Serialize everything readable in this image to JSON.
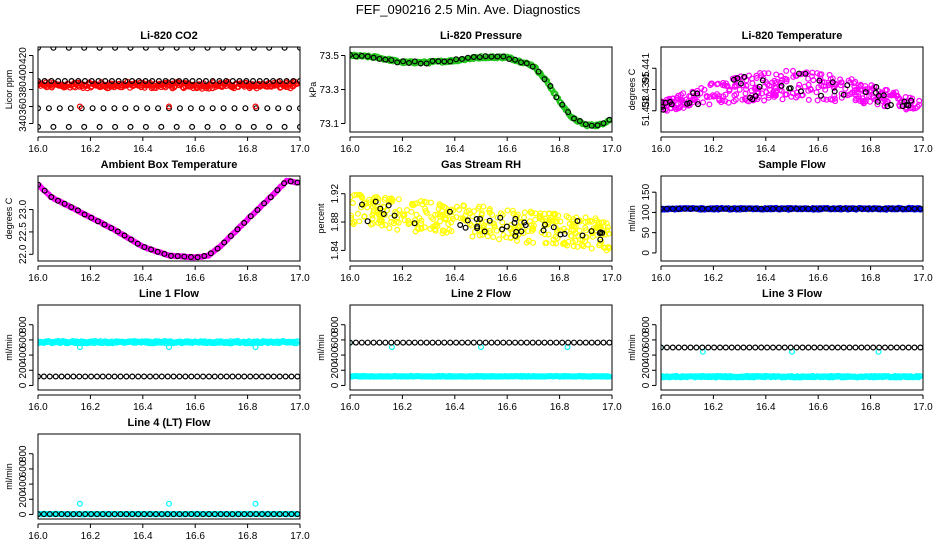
{
  "page_title": "FEF_090216  2.5 Min. Ave. Diagnostics",
  "colors": {
    "black": "#000000",
    "red": "#ff0000",
    "green": "#22c41b",
    "magenta": "#ff00ff",
    "yellow": "#ffff00",
    "cyan": "#00ffff",
    "blue": "#0000ff"
  },
  "chart_data": [
    {
      "id": "co2",
      "type": "scatter",
      "title": "Li-820 CO2",
      "ylabel": "Licor ppm",
      "xlim": [
        16.0,
        17.0
      ],
      "ylim": [
        330,
        430
      ],
      "xticks": [
        "16.0",
        "16.2",
        "16.4",
        "16.6",
        "16.8",
        "17.0"
      ],
      "yticks": [
        {
          "v": 340,
          "label": "340"
        },
        {
          "v": 360,
          "label": "360"
        },
        {
          "v": 380,
          "label": "380"
        },
        {
          "v": 400,
          "label": "400"
        },
        {
          "v": 420,
          "label": "420"
        }
      ],
      "ytick_rotated": true,
      "series": [
        {
          "name": "band",
          "color": "red",
          "kind": "band",
          "x0": 16.0,
          "x1": 16.99,
          "y0": 382,
          "y1": 388,
          "amp": 3,
          "n": 300
        },
        {
          "name": "upper",
          "color": "black",
          "kind": "line",
          "x0": 16.0,
          "x1": 17.0,
          "y": 429,
          "n": 18
        },
        {
          "name": "high",
          "color": "black",
          "kind": "line",
          "x0": 16.0,
          "x1": 17.0,
          "y": 390,
          "n": 40
        },
        {
          "name": "mid",
          "color": "black",
          "kind": "line",
          "x0": 16.0,
          "x1": 17.0,
          "y": 358,
          "n": 25
        },
        {
          "name": "low",
          "color": "black",
          "kind": "line",
          "x0": 16.0,
          "x1": 17.0,
          "y": 336,
          "n": 18
        },
        {
          "name": "spikes",
          "color": "red",
          "kind": "points",
          "x": [
            16.16,
            16.5,
            16.83
          ],
          "y": [
            360,
            360,
            360
          ]
        }
      ]
    },
    {
      "id": "pressure",
      "type": "scatter",
      "title": "Li-820 Pressure",
      "ylabel": "kPa",
      "xlim": [
        16.0,
        17.0
      ],
      "ylim": [
        73.05,
        73.55
      ],
      "xticks": [
        "16.0",
        "16.2",
        "16.4",
        "16.6",
        "16.8",
        "17.0"
      ],
      "yticks": [
        {
          "v": 73.1,
          "label": "73.1"
        },
        {
          "v": 73.3,
          "label": "73.3"
        },
        {
          "v": 73.5,
          "label": "73.5"
        }
      ],
      "ytick_rotated": false,
      "series": [
        {
          "name": "pressure",
          "color": "green",
          "kind": "curve",
          "x": [
            16.0,
            16.1,
            16.2,
            16.3,
            16.4,
            16.5,
            16.6,
            16.7,
            16.75,
            16.8,
            16.85,
            16.9,
            16.95,
            16.99
          ],
          "y": [
            73.5,
            73.49,
            73.46,
            73.46,
            73.47,
            73.49,
            73.49,
            73.44,
            73.35,
            73.23,
            73.13,
            73.09,
            73.09,
            73.12
          ],
          "noise": 0.015,
          "n": 280
        },
        {
          "name": "pressure-black",
          "color": "black",
          "kind": "curve",
          "x": [
            16.0,
            16.1,
            16.2,
            16.3,
            16.4,
            16.5,
            16.6,
            16.7,
            16.75,
            16.8,
            16.85,
            16.9,
            16.95,
            16.99
          ],
          "y": [
            73.5,
            73.49,
            73.46,
            73.46,
            73.47,
            73.49,
            73.49,
            73.44,
            73.35,
            73.23,
            73.13,
            73.09,
            73.09,
            73.12
          ],
          "noise": 0.015,
          "n": 45
        }
      ]
    },
    {
      "id": "licor-temp",
      "type": "scatter",
      "title": "Li-820 Temperature",
      "ylabel": "degrees C",
      "xlim": [
        16.0,
        17.0
      ],
      "ylim": [
        51.4365,
        51.4425
      ],
      "xticks": [
        "16.0",
        "16.2",
        "16.4",
        "16.6",
        "16.8",
        "17.0"
      ],
      "yticks": [
        {
          "v": 51.438,
          "label": "51.438"
        },
        {
          "v": 51.4395,
          "label": "51.4395"
        },
        {
          "v": 51.441,
          "label": "51.441"
        }
      ],
      "ytick_rotated": true,
      "series": [
        {
          "name": "temp",
          "color": "magenta",
          "kind": "arch",
          "x0": 16.0,
          "x1": 16.99,
          "base": 51.4383,
          "peak": 51.4398,
          "spread": 0.0013,
          "n": 360
        },
        {
          "name": "temp-black",
          "color": "black",
          "kind": "arch",
          "x0": 16.0,
          "x1": 16.99,
          "base": 51.4383,
          "peak": 51.4398,
          "spread": 0.0012,
          "n": 45
        }
      ]
    },
    {
      "id": "ambient-box",
      "type": "scatter",
      "title": "Ambient Box Temperature",
      "ylabel": "degrees C",
      "xlim": [
        16.0,
        17.0
      ],
      "ylim": [
        21.85,
        23.75
      ],
      "xticks": [
        "16.0",
        "16.2",
        "16.4",
        "16.6",
        "16.8",
        "17.0"
      ],
      "yticks": [
        {
          "v": 22.0,
          "label": "22.0"
        },
        {
          "v": 22.5,
          "label": "22.5"
        },
        {
          "v": 23.0,
          "label": "23.0"
        }
      ],
      "ytick_rotated": true,
      "series": [
        {
          "name": "box",
          "color": "magenta",
          "kind": "curve",
          "x": [
            16.0,
            16.05,
            16.1,
            16.2,
            16.3,
            16.4,
            16.5,
            16.6,
            16.65,
            16.7,
            16.8,
            16.9,
            16.95,
            16.99
          ],
          "y": [
            23.56,
            23.28,
            23.13,
            22.83,
            22.52,
            22.17,
            21.97,
            21.93,
            21.97,
            22.2,
            22.78,
            23.35,
            23.65,
            23.6
          ],
          "noise": 0.015,
          "n": 220
        },
        {
          "name": "box-black",
          "color": "black",
          "kind": "curve",
          "x": [
            16.0,
            16.05,
            16.1,
            16.2,
            16.3,
            16.4,
            16.5,
            16.6,
            16.65,
            16.7,
            16.8,
            16.9,
            16.95,
            16.99
          ],
          "y": [
            23.56,
            23.28,
            23.13,
            22.83,
            22.52,
            22.17,
            21.97,
            21.93,
            21.97,
            22.2,
            22.78,
            23.35,
            23.65,
            23.6
          ],
          "noise": 0.015,
          "n": 40
        }
      ]
    },
    {
      "id": "rh",
      "type": "scatter",
      "title": "Gas Stream RH",
      "ylabel": "percent",
      "xlim": [
        16.0,
        17.0
      ],
      "ylim": [
        1.825,
        1.945
      ],
      "xticks": [
        "16.0",
        "16.2",
        "16.4",
        "16.6",
        "16.8",
        "17.0"
      ],
      "yticks": [
        {
          "v": 1.84,
          "label": "1.84"
        },
        {
          "v": 1.88,
          "label": "1.88"
        },
        {
          "v": 1.92,
          "label": "1.92"
        }
      ],
      "ytick_rotated": true,
      "series": [
        {
          "name": "rh",
          "color": "yellow",
          "kind": "trend",
          "x0": 16.0,
          "x1": 16.99,
          "y0": 1.898,
          "y1": 1.862,
          "spread": 0.045,
          "n": 380
        },
        {
          "name": "rh-black",
          "color": "black",
          "kind": "trend",
          "x0": 16.0,
          "x1": 16.99,
          "y0": 1.898,
          "y1": 1.862,
          "spread": 0.03,
          "n": 40
        }
      ]
    },
    {
      "id": "sample-flow",
      "type": "scatter",
      "title": "Sample Flow",
      "ylabel": "ml/min",
      "xlim": [
        16.0,
        17.0
      ],
      "ylim": [
        -20,
        190
      ],
      "xticks": [
        "16.0",
        "16.2",
        "16.4",
        "16.6",
        "16.8",
        "17.0"
      ],
      "yticks": [
        {
          "v": 0,
          "label": "0"
        },
        {
          "v": 50,
          "label": "50"
        },
        {
          "v": 100,
          "label": "100"
        },
        {
          "v": 150,
          "label": "150"
        }
      ],
      "ytick_rotated": true,
      "series": [
        {
          "name": "blue",
          "color": "blue",
          "kind": "band",
          "x0": 16.0,
          "x1": 16.99,
          "y0": 107,
          "y1": 111,
          "amp": 1,
          "n": 300
        },
        {
          "name": "black",
          "color": "black",
          "kind": "line",
          "x0": 16.0,
          "x1": 16.99,
          "y": 109,
          "n": 45
        }
      ]
    },
    {
      "id": "line1",
      "type": "scatter",
      "title": "Line 1 Flow",
      "ylabel": "ml/min",
      "xlim": [
        16.0,
        17.0
      ],
      "ylim": [
        -60,
        1060
      ],
      "xticks": [
        "16.0",
        "16.2",
        "16.4",
        "16.6",
        "16.8",
        "17.0"
      ],
      "yticks": [
        {
          "v": 0,
          "label": "0"
        },
        {
          "v": 200,
          "label": "200"
        },
        {
          "v": 400,
          "label": "400"
        },
        {
          "v": 600,
          "label": "600"
        },
        {
          "v": 800,
          "label": "800"
        }
      ],
      "ytick_rotated": true,
      "series": [
        {
          "name": "cyan",
          "color": "cyan",
          "kind": "band",
          "x0": 16.0,
          "x1": 16.99,
          "y0": 555,
          "y1": 585,
          "amp": 4,
          "n": 300
        },
        {
          "name": "cyan-dips",
          "color": "cyan",
          "kind": "points",
          "x": [
            16.16,
            16.5,
            16.83
          ],
          "y": [
            505,
            505,
            505
          ]
        },
        {
          "name": "black",
          "color": "black",
          "kind": "line",
          "x0": 16.0,
          "x1": 16.99,
          "y": 118,
          "n": 45
        }
      ]
    },
    {
      "id": "line2",
      "type": "scatter",
      "title": "Line 2 Flow",
      "ylabel": "ml/min",
      "xlim": [
        16.0,
        17.0
      ],
      "ylim": [
        -60,
        1060
      ],
      "xticks": [
        "16.0",
        "16.2",
        "16.4",
        "16.6",
        "16.8",
        "17.0"
      ],
      "yticks": [
        {
          "v": 0,
          "label": "0"
        },
        {
          "v": 200,
          "label": "200"
        },
        {
          "v": 400,
          "label": "400"
        },
        {
          "v": 600,
          "label": "600"
        },
        {
          "v": 800,
          "label": "800"
        }
      ],
      "ytick_rotated": true,
      "series": [
        {
          "name": "cyan",
          "color": "cyan",
          "kind": "band",
          "x0": 16.0,
          "x1": 16.99,
          "y0": 115,
          "y1": 125,
          "amp": 3,
          "n": 300
        },
        {
          "name": "cyan-dips",
          "color": "cyan",
          "kind": "points",
          "x": [
            16.0,
            16.16,
            16.5,
            16.83
          ],
          "y": [
            560,
            505,
            505,
            505
          ]
        },
        {
          "name": "black",
          "color": "black",
          "kind": "line",
          "x0": 16.0,
          "x1": 16.99,
          "y": 565,
          "n": 45
        }
      ]
    },
    {
      "id": "line3",
      "type": "scatter",
      "title": "Line 3 Flow",
      "ylabel": "ml/min",
      "xlim": [
        16.0,
        17.0
      ],
      "ylim": [
        -60,
        1060
      ],
      "xticks": [
        "16.0",
        "16.2",
        "16.4",
        "16.6",
        "16.8",
        "17.0"
      ],
      "yticks": [
        {
          "v": 0,
          "label": "0"
        },
        {
          "v": 200,
          "label": "200"
        },
        {
          "v": 400,
          "label": "400"
        },
        {
          "v": 600,
          "label": "600"
        },
        {
          "v": 800,
          "label": "800"
        }
      ],
      "ytick_rotated": true,
      "series": [
        {
          "name": "cyan",
          "color": "cyan",
          "kind": "band",
          "x0": 16.0,
          "x1": 16.99,
          "y0": 105,
          "y1": 125,
          "amp": 3,
          "n": 300
        },
        {
          "name": "cyan-dips",
          "color": "cyan",
          "kind": "points",
          "x": [
            16.0,
            16.16,
            16.5,
            16.83
          ],
          "y": [
            500,
            445,
            445,
            445
          ]
        },
        {
          "name": "black",
          "color": "black",
          "kind": "line",
          "x0": 16.0,
          "x1": 16.99,
          "y": 500,
          "n": 45
        }
      ]
    },
    {
      "id": "line4",
      "type": "scatter",
      "title": "Line 4 (LT) Flow",
      "ylabel": "ml/min",
      "xlim": [
        16.0,
        17.0
      ],
      "ylim": [
        -60,
        1060
      ],
      "xticks": [
        "16.0",
        "16.2",
        "16.4",
        "16.6",
        "16.8",
        "17.0"
      ],
      "yticks": [
        {
          "v": 0,
          "label": "0"
        },
        {
          "v": 200,
          "label": "200"
        },
        {
          "v": 400,
          "label": "400"
        },
        {
          "v": 600,
          "label": "600"
        },
        {
          "v": 800,
          "label": "800"
        }
      ],
      "ytick_rotated": true,
      "series": [
        {
          "name": "cyan",
          "color": "cyan",
          "kind": "band",
          "x0": 16.0,
          "x1": 16.99,
          "y0": 2,
          "y1": 8,
          "amp": 2,
          "n": 300
        },
        {
          "name": "cyan-spikes",
          "color": "cyan",
          "kind": "points",
          "x": [
            16.16,
            16.5,
            16.83
          ],
          "y": [
            140,
            140,
            140
          ]
        },
        {
          "name": "black",
          "color": "black",
          "kind": "line",
          "x0": 16.0,
          "x1": 16.99,
          "y": 5,
          "n": 45
        }
      ]
    }
  ]
}
